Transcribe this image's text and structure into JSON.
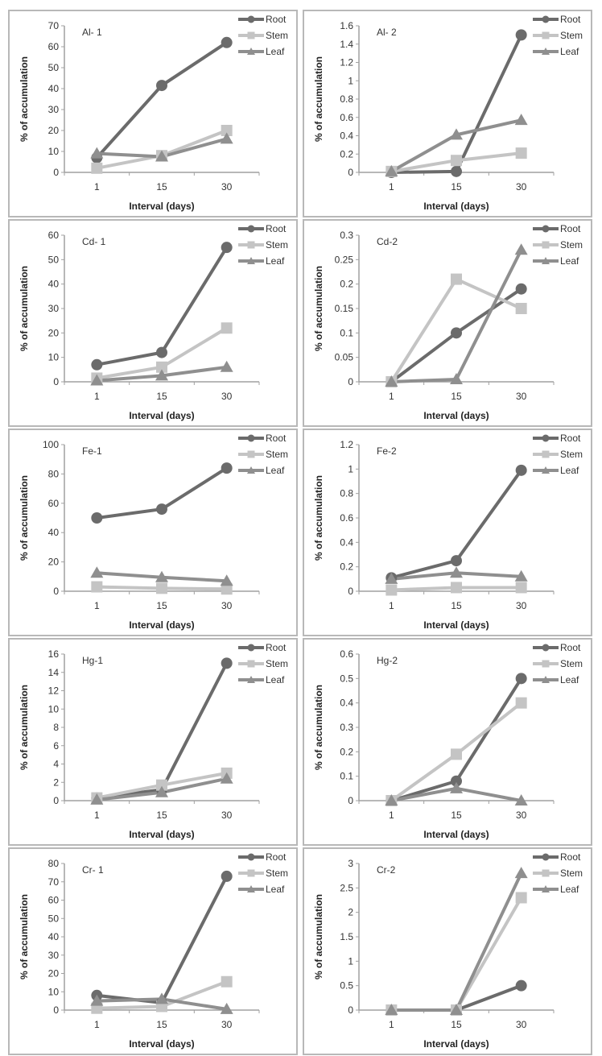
{
  "colors": {
    "Root": "#6b6b6b",
    "Stem": "#c4c4c4",
    "Leaf": "#8f8f8f",
    "axis": "#a0a0a0",
    "border": "#b8b8b8"
  },
  "chart_data": [
    {
      "type": "line",
      "title": "Al- 1",
      "xlabel": "Interval (days)",
      "ylabel": "% of accumulation",
      "categories": [
        "1",
        "15",
        "30"
      ],
      "ylim": [
        0,
        70
      ],
      "yticks": [
        "0",
        "10",
        "20",
        "30",
        "40",
        "50",
        "60",
        "70"
      ],
      "legend": "top-right",
      "series": [
        {
          "name": "Root",
          "marker": "circle",
          "values": [
            7,
            41.5,
            62
          ]
        },
        {
          "name": "Stem",
          "marker": "square",
          "values": [
            2,
            8,
            20
          ]
        },
        {
          "name": "Leaf",
          "marker": "triangle",
          "values": [
            9,
            7.5,
            16
          ]
        }
      ]
    },
    {
      "type": "line",
      "title": "Al- 2",
      "xlabel": "Interval (days)",
      "ylabel": "% of accumulation",
      "categories": [
        "1",
        "15",
        "30"
      ],
      "ylim": [
        0,
        1.6
      ],
      "yticks": [
        "0",
        "0.2",
        "0.4",
        "0.6",
        "0.8",
        "1",
        "1.2",
        "1.4",
        "1.6"
      ],
      "legend": "top-right",
      "series": [
        {
          "name": "Root",
          "marker": "circle",
          "values": [
            0,
            0.01,
            1.5
          ]
        },
        {
          "name": "Stem",
          "marker": "square",
          "values": [
            0.01,
            0.13,
            0.21
          ]
        },
        {
          "name": "Leaf",
          "marker": "triangle",
          "values": [
            0.01,
            0.41,
            0.57
          ]
        }
      ]
    },
    {
      "type": "line",
      "title": "Cd- 1",
      "xlabel": "Interval (days)",
      "ylabel": "% of accumulation",
      "categories": [
        "1",
        "15",
        "30"
      ],
      "ylim": [
        0,
        60
      ],
      "yticks": [
        "0",
        "10",
        "20",
        "30",
        "40",
        "50",
        "60"
      ],
      "legend": "top-right",
      "series": [
        {
          "name": "Root",
          "marker": "circle",
          "values": [
            7,
            12,
            55
          ]
        },
        {
          "name": "Stem",
          "marker": "square",
          "values": [
            1.5,
            6,
            22
          ]
        },
        {
          "name": "Leaf",
          "marker": "triangle",
          "values": [
            0.5,
            2.5,
            6
          ]
        }
      ]
    },
    {
      "type": "line",
      "title": "Cd-2",
      "xlabel": "Interval (days)",
      "ylabel": "% of accumulation",
      "categories": [
        "1",
        "15",
        "30"
      ],
      "ylim": [
        0,
        0.3
      ],
      "yticks": [
        "0",
        "0.05",
        "0.1",
        "0.15",
        "0.2",
        "0.25",
        "0.3"
      ],
      "legend": "top-right",
      "series": [
        {
          "name": "Root",
          "marker": "circle",
          "values": [
            0,
            0.1,
            0.19
          ]
        },
        {
          "name": "Stem",
          "marker": "square",
          "values": [
            0,
            0.21,
            0.15
          ]
        },
        {
          "name": "Leaf",
          "marker": "triangle",
          "values": [
            0,
            0.005,
            0.27
          ]
        }
      ]
    },
    {
      "type": "line",
      "title": "Fe-1",
      "xlabel": "Interval (days)",
      "ylabel": "% of accumulation",
      "categories": [
        "1",
        "15",
        "30"
      ],
      "ylim": [
        0,
        100
      ],
      "yticks": [
        "0",
        "20",
        "40",
        "60",
        "80",
        "100"
      ],
      "legend": "top-right",
      "series": [
        {
          "name": "Root",
          "marker": "circle",
          "values": [
            50,
            56,
            84
          ]
        },
        {
          "name": "Stem",
          "marker": "square",
          "values": [
            3,
            2,
            1.5
          ]
        },
        {
          "name": "Leaf",
          "marker": "triangle",
          "values": [
            12.5,
            9.5,
            7
          ]
        }
      ]
    },
    {
      "type": "line",
      "title": "Fe-2",
      "xlabel": "Interval (days)",
      "ylabel": "% of accumulation",
      "categories": [
        "1",
        "15",
        "30"
      ],
      "ylim": [
        0,
        1.2
      ],
      "yticks": [
        "0",
        "0.2",
        "0.4",
        "0.6",
        "0.8",
        "1",
        "1.2"
      ],
      "legend": "top-right",
      "series": [
        {
          "name": "Root",
          "marker": "circle",
          "values": [
            0.11,
            0.25,
            0.99
          ]
        },
        {
          "name": "Stem",
          "marker": "square",
          "values": [
            0.01,
            0.03,
            0.03
          ]
        },
        {
          "name": "Leaf",
          "marker": "triangle",
          "values": [
            0.1,
            0.15,
            0.12
          ]
        }
      ]
    },
    {
      "type": "line",
      "title": "Hg-1",
      "xlabel": "Interval (days)",
      "ylabel": "% of accumulation",
      "categories": [
        "1",
        "15",
        "30"
      ],
      "ylim": [
        0,
        16
      ],
      "yticks": [
        "0",
        "2",
        "4",
        "6",
        "8",
        "10",
        "12",
        "14",
        "16"
      ],
      "legend": "top-right",
      "series": [
        {
          "name": "Root",
          "marker": "circle",
          "values": [
            0.3,
            1.2,
            15
          ]
        },
        {
          "name": "Stem",
          "marker": "square",
          "values": [
            0.3,
            1.7,
            3
          ]
        },
        {
          "name": "Leaf",
          "marker": "triangle",
          "values": [
            0.1,
            0.9,
            2.4
          ]
        }
      ]
    },
    {
      "type": "line",
      "title": "Hg-2",
      "xlabel": "Interval (days)",
      "ylabel": "% of accumulation",
      "categories": [
        "1",
        "15",
        "30"
      ],
      "ylim": [
        0,
        0.6
      ],
      "yticks": [
        "0",
        "0.1",
        "0.2",
        "0.3",
        "0.4",
        "0.5",
        "0.6"
      ],
      "legend": "top-right",
      "series": [
        {
          "name": "Root",
          "marker": "circle",
          "values": [
            0,
            0.08,
            0.5
          ]
        },
        {
          "name": "Stem",
          "marker": "square",
          "values": [
            0,
            0.19,
            0.4
          ]
        },
        {
          "name": "Leaf",
          "marker": "triangle",
          "values": [
            0,
            0.05,
            0
          ]
        }
      ]
    },
    {
      "type": "line",
      "title": "Cr- 1",
      "xlabel": "Interval (days)",
      "ylabel": "% of accumulation",
      "categories": [
        "1",
        "15",
        "30"
      ],
      "ylim": [
        0,
        80
      ],
      "yticks": [
        "0",
        "10",
        "20",
        "30",
        "40",
        "50",
        "60",
        "70",
        "80"
      ],
      "legend": "top-right",
      "series": [
        {
          "name": "Root",
          "marker": "circle",
          "values": [
            8,
            4,
            73
          ]
        },
        {
          "name": "Stem",
          "marker": "square",
          "values": [
            1,
            2,
            15.5
          ]
        },
        {
          "name": "Leaf",
          "marker": "triangle",
          "values": [
            5,
            6,
            0.5
          ]
        }
      ]
    },
    {
      "type": "line",
      "title": "Cr-2",
      "xlabel": "Interval (days)",
      "ylabel": "% of accumulation",
      "categories": [
        "1",
        "15",
        "30"
      ],
      "ylim": [
        0,
        3
      ],
      "yticks": [
        "0",
        "0.5",
        "1",
        "1.5",
        "2",
        "2.5",
        "3"
      ],
      "legend": "top-right",
      "series": [
        {
          "name": "Root",
          "marker": "circle",
          "values": [
            0,
            0,
            0.5
          ]
        },
        {
          "name": "Stem",
          "marker": "square",
          "values": [
            0,
            0,
            2.3
          ]
        },
        {
          "name": "Leaf",
          "marker": "triangle",
          "values": [
            0,
            0,
            2.8
          ]
        }
      ]
    }
  ]
}
